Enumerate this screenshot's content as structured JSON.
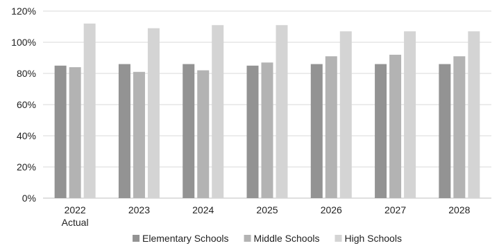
{
  "chart_data": {
    "type": "bar",
    "categories": [
      [
        "2022",
        "Actual"
      ],
      [
        "2023"
      ],
      [
        "2024"
      ],
      [
        "2025"
      ],
      [
        "2026"
      ],
      [
        "2027"
      ],
      [
        "2028"
      ]
    ],
    "series": [
      {
        "name": "Elementary Schools",
        "color": "#939393",
        "values": [
          85,
          86,
          86,
          85,
          86,
          86,
          86
        ]
      },
      {
        "name": "Middle Schools",
        "color": "#b3b3b3",
        "values": [
          84,
          81,
          82,
          87,
          91,
          92,
          91
        ]
      },
      {
        "name": "High Schools",
        "color": "#d4d4d4",
        "values": [
          112,
          109,
          111,
          111,
          107,
          107,
          107
        ]
      }
    ],
    "ylim": [
      0,
      120
    ],
    "yticks": [
      {
        "value": 0,
        "label": "0%"
      },
      {
        "value": 20,
        "label": "20%"
      },
      {
        "value": 40,
        "label": "40%"
      },
      {
        "value": 60,
        "label": "60%"
      },
      {
        "value": 80,
        "label": "80%"
      },
      {
        "value": 100,
        "label": "100%"
      },
      {
        "value": 120,
        "label": "120%"
      }
    ],
    "grid": true,
    "legend_position": "bottom",
    "title": "",
    "xlabel": "",
    "ylabel": ""
  }
}
